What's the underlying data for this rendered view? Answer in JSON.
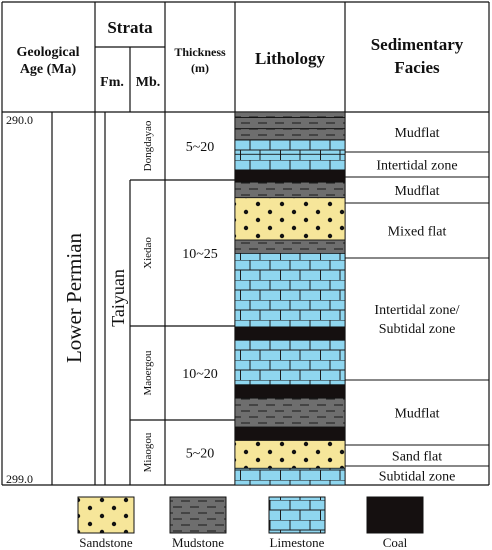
{
  "headers": {
    "geo_age": [
      "Geological",
      "Age (Ma)"
    ],
    "strata": "Strata",
    "fm": "Fm.",
    "mb": "Mb.",
    "thickness": [
      "Thickness",
      "(m)"
    ],
    "lithology": "Lithology",
    "facies": [
      "Sedimentary",
      "Facies"
    ]
  },
  "age": {
    "top": "290.0",
    "bottom": "299.0",
    "period": "Lower Permian"
  },
  "formation": "Taiyuan",
  "members": [
    {
      "name": "Dongdayao",
      "thickness": "5~20"
    },
    {
      "name": "Xiedao",
      "thickness": "10~25"
    },
    {
      "name": "Maoergou",
      "thickness": "10~20"
    },
    {
      "name": "Miaogou",
      "thickness": "5~20"
    }
  ],
  "facies": [
    [
      "Mudflat"
    ],
    [
      "Intertidal zone"
    ],
    [
      "Mudflat"
    ],
    [
      "Mixed flat"
    ],
    [
      "Intertidal zone/",
      "Subtidal zone"
    ],
    [
      "Mudflat"
    ],
    [
      "Sand flat"
    ],
    [
      "Subtidal zone"
    ]
  ],
  "lithology_column": {
    "note": "layers top to bottom; relative thickness units",
    "layers": [
      {
        "rock": "mudstone",
        "t": 5
      },
      {
        "rock": "mudstone",
        "t": 10
      },
      {
        "rock": "mudstone",
        "t": 10
      },
      {
        "rock": "limestone",
        "t": 13
      },
      {
        "rock": "limestone",
        "t": 14
      },
      {
        "rock": "coal",
        "t": 11
      },
      {
        "rock": "mudstone",
        "t": 14
      },
      {
        "rock": "sandstone",
        "t": 38
      },
      {
        "rock": "mudstone",
        "t": 12
      },
      {
        "rock": "limestone",
        "t": 66
      },
      {
        "rock": "coal",
        "t": 12
      },
      {
        "rock": "limestone",
        "t": 40
      },
      {
        "rock": "coal",
        "t": 12
      },
      {
        "rock": "mudstone",
        "t": 26
      },
      {
        "rock": "coal",
        "t": 12
      },
      {
        "rock": "sandstone",
        "t": 25
      },
      {
        "rock": "limestone",
        "t": 15
      }
    ]
  },
  "legend": [
    {
      "rock": "sandstone",
      "label": "Sandstone"
    },
    {
      "rock": "mudstone",
      "label": "Mudstone"
    },
    {
      "rock": "limestone",
      "label": "Limestone"
    },
    {
      "rock": "coal",
      "label": "Coal"
    }
  ],
  "colors": {
    "sandstone": "#f6e69a",
    "mudstone": "#6e6e6e",
    "limestone": "#8fd6ef",
    "coal": "#151010"
  }
}
